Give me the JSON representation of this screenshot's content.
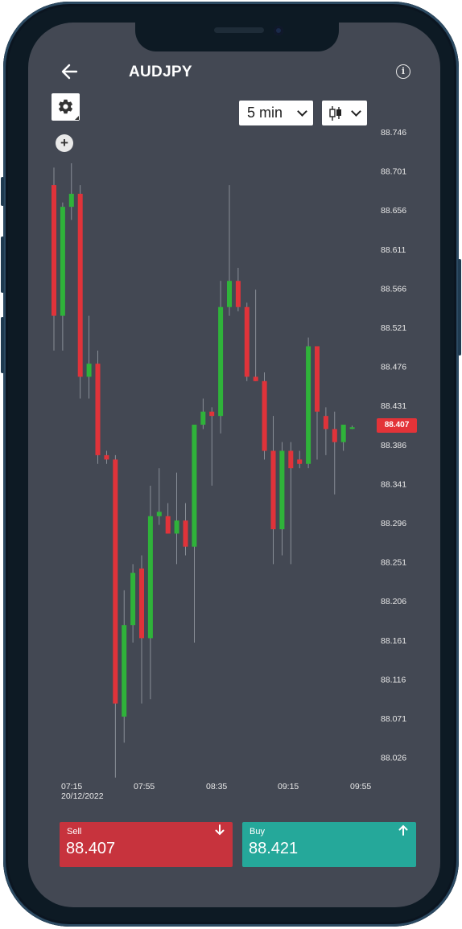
{
  "header": {
    "title": "AUDJPY"
  },
  "toolbar": {
    "interval_value": "5 min",
    "chart_type_icon": "candlestick-icon"
  },
  "price_axis": [
    "88.746",
    "88.701",
    "88.656",
    "88.611",
    "88.566",
    "88.521",
    "88.476",
    "88.431",
    "88.386",
    "88.341",
    "88.296",
    "88.251",
    "88.206",
    "88.161",
    "88.116",
    "88.071",
    "88.026"
  ],
  "time_axis": [
    {
      "time": "07:15",
      "date": "20/12/2022"
    },
    {
      "time": "07:55",
      "date": ""
    },
    {
      "time": "08:35",
      "date": ""
    },
    {
      "time": "09:15",
      "date": ""
    },
    {
      "time": "09:55",
      "date": ""
    }
  ],
  "current_price": "88.407",
  "trade": {
    "sell": {
      "label": "Sell",
      "value": "88.407"
    },
    "buy": {
      "label": "Buy",
      "value": "88.421"
    }
  },
  "colors": {
    "background": "#434853",
    "bull": "#2fb33a",
    "bear": "#e0333a",
    "sell": "#c7333d",
    "buy": "#25a89a"
  },
  "chart_data": {
    "type": "candlestick",
    "symbol": "AUDJPY",
    "interval": "5 min",
    "ylim": [
      88.02,
      88.75
    ],
    "candles": [
      {
        "o": 88.685,
        "h": 88.705,
        "l": 88.495,
        "c": 88.535
      },
      {
        "o": 88.535,
        "h": 88.665,
        "l": 88.495,
        "c": 88.66
      },
      {
        "o": 88.66,
        "h": 88.71,
        "l": 88.645,
        "c": 88.675
      },
      {
        "o": 88.675,
        "h": 88.685,
        "l": 88.44,
        "c": 88.465
      },
      {
        "o": 88.465,
        "h": 88.535,
        "l": 88.44,
        "c": 88.48
      },
      {
        "o": 88.48,
        "h": 88.495,
        "l": 88.365,
        "c": 88.375
      },
      {
        "o": 88.375,
        "h": 88.38,
        "l": 88.365,
        "c": 88.37
      },
      {
        "o": 88.37,
        "h": 88.375,
        "l": 88.005,
        "c": 88.09
      },
      {
        "o": 88.075,
        "h": 88.22,
        "l": 88.045,
        "c": 88.18
      },
      {
        "o": 88.18,
        "h": 88.25,
        "l": 88.16,
        "c": 88.24
      },
      {
        "o": 88.245,
        "h": 88.26,
        "l": 88.09,
        "c": 88.165
      },
      {
        "o": 88.165,
        "h": 88.34,
        "l": 88.095,
        "c": 88.305
      },
      {
        "o": 88.305,
        "h": 88.36,
        "l": 88.295,
        "c": 88.31
      },
      {
        "o": 88.305,
        "h": 88.32,
        "l": 88.285,
        "c": 88.285
      },
      {
        "o": 88.285,
        "h": 88.355,
        "l": 88.25,
        "c": 88.3
      },
      {
        "o": 88.3,
        "h": 88.32,
        "l": 88.26,
        "c": 88.27
      },
      {
        "o": 88.27,
        "h": 88.41,
        "l": 88.16,
        "c": 88.41
      },
      {
        "o": 88.41,
        "h": 88.44,
        "l": 88.405,
        "c": 88.425
      },
      {
        "o": 88.425,
        "h": 88.43,
        "l": 88.34,
        "c": 88.42
      },
      {
        "o": 88.42,
        "h": 88.575,
        "l": 88.4,
        "c": 88.545
      },
      {
        "o": 88.545,
        "h": 88.685,
        "l": 88.535,
        "c": 88.575
      },
      {
        "o": 88.575,
        "h": 88.59,
        "l": 88.54,
        "c": 88.545
      },
      {
        "o": 88.545,
        "h": 88.55,
        "l": 88.46,
        "c": 88.465
      },
      {
        "o": 88.465,
        "h": 88.565,
        "l": 88.46,
        "c": 88.46
      },
      {
        "o": 88.46,
        "h": 88.47,
        "l": 88.37,
        "c": 88.38
      },
      {
        "o": 88.38,
        "h": 88.42,
        "l": 88.25,
        "c": 88.29
      },
      {
        "o": 88.29,
        "h": 88.39,
        "l": 88.26,
        "c": 88.38
      },
      {
        "o": 88.38,
        "h": 88.39,
        "l": 88.25,
        "c": 88.36
      },
      {
        "o": 88.37,
        "h": 88.38,
        "l": 88.36,
        "c": 88.365
      },
      {
        "o": 88.365,
        "h": 88.51,
        "l": 88.36,
        "c": 88.5
      },
      {
        "o": 88.5,
        "h": 88.5,
        "l": 88.37,
        "c": 88.425
      },
      {
        "o": 88.42,
        "h": 88.43,
        "l": 88.375,
        "c": 88.405
      },
      {
        "o": 88.405,
        "h": 88.425,
        "l": 88.33,
        "c": 88.39
      },
      {
        "o": 88.39,
        "h": 88.41,
        "l": 88.38,
        "c": 88.41
      },
      {
        "o": 88.407,
        "h": 88.409,
        "l": 88.405,
        "c": 88.407
      }
    ]
  }
}
